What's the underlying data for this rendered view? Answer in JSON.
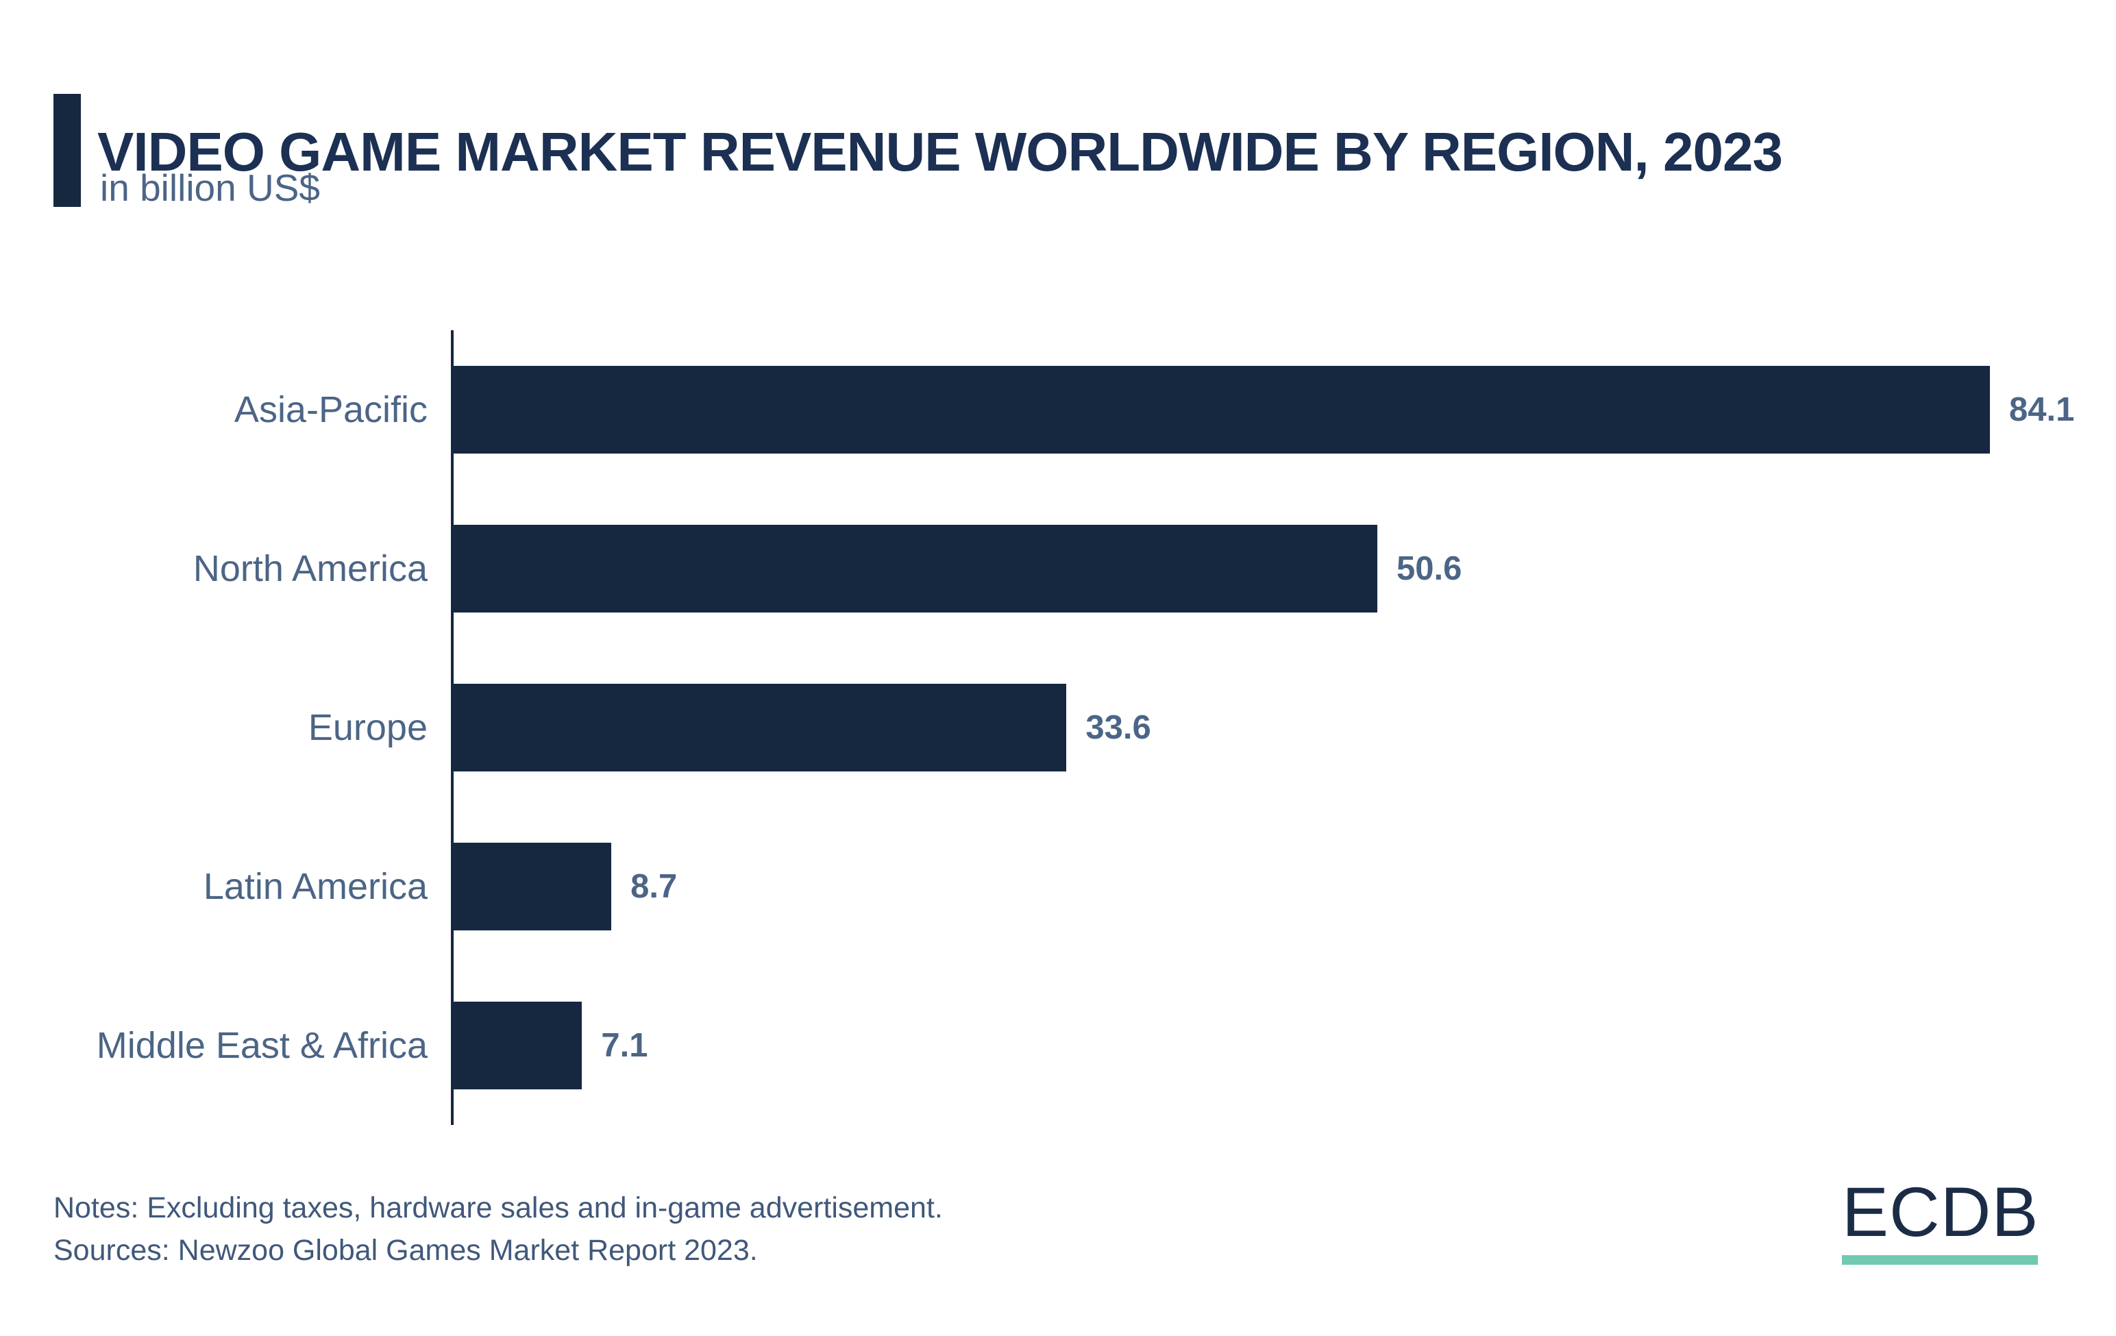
{
  "header": {
    "title": "VIDEO GAME MARKET REVENUE WORLDWIDE BY REGION, 2023",
    "subtitle": "in billion US$"
  },
  "chart_data": {
    "type": "bar",
    "orientation": "horizontal",
    "title": "VIDEO GAME MARKET REVENUE WORLDWIDE BY REGION, 2023",
    "subtitle_units": "in billion US$",
    "categories": [
      "Asia-Pacific",
      "North America",
      "Europe",
      "Latin America",
      "Middle East & Africa"
    ],
    "values": [
      84.1,
      50.6,
      33.6,
      8.7,
      7.1
    ],
    "value_labels": [
      "84.1",
      "50.6",
      "33.6",
      "8.7",
      "7.1"
    ],
    "xlabel": "",
    "ylabel": "",
    "xlim": [
      0,
      91
    ],
    "grid": false,
    "legend": false,
    "axis_line": "left-vertical-only"
  },
  "colors": {
    "bar": "#15283F",
    "accent": "#15283F",
    "title": "#1B3052",
    "category_value_labels": "#4C6586",
    "notes": "#40587A",
    "logo_text": "#1B2C47",
    "logo_underline": "#70C9B1",
    "background": "#FFFFFF"
  },
  "footer": {
    "notes": "Notes: Excluding taxes, hardware sales and in-game advertisement.",
    "sources": "Sources: Newzoo Global Games Market Report 2023."
  },
  "logo": {
    "text": "ECDB"
  }
}
